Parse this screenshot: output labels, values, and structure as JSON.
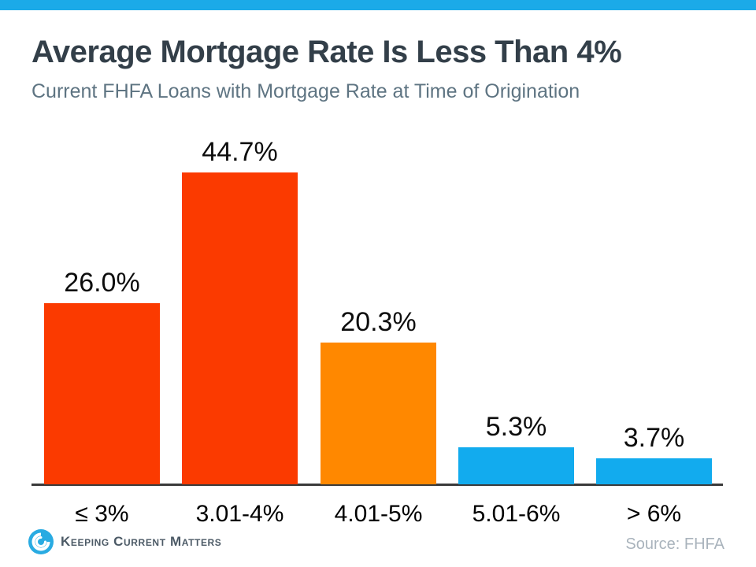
{
  "chart_data": {
    "type": "bar",
    "title": "Average Mortgage Rate Is Less Than 4%",
    "subtitle": "Current FHFA Loans with Mortgage Rate at Time of Origination",
    "categories": [
      "≤ 3%",
      "3.01-4%",
      "4.01-5%",
      "5.01-6%",
      "> 6%"
    ],
    "values": [
      26.0,
      44.7,
      20.3,
      5.3,
      3.7
    ],
    "value_labels": [
      "26.0%",
      "44.7%",
      "20.3%",
      "5.3%",
      "3.7%"
    ],
    "bar_colors": [
      "#FB3A00",
      "#FB3A00",
      "#FF8800",
      "#12ABEE",
      "#12ABEE"
    ],
    "xlabel": "",
    "ylabel": "",
    "ylim": [
      0,
      45
    ],
    "grid": false,
    "legend": null,
    "source": "Source: FHFA"
  },
  "footer": {
    "logo_text": "Keeping Current Matters"
  },
  "colors": {
    "top_bar": "#1BAAE8",
    "bar_red": "#FB3A00",
    "bar_orange": "#FF8800",
    "bar_blue": "#12ABEE",
    "axis": "#3A3A3A",
    "title_text": "#333F49",
    "subtitle_text": "#5E7482",
    "source_text": "#A9B3BC",
    "logo_blue": "#29ABE2",
    "logo_text_color": "#4C5A66"
  }
}
